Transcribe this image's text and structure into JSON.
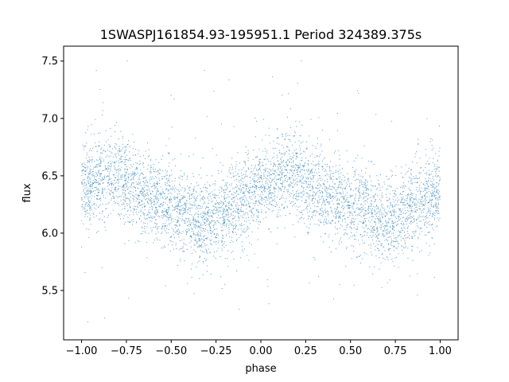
{
  "chart_data": {
    "type": "scatter",
    "title": "1SWASPJ161854.93-195951.1 Period 324389.375s",
    "xlabel": "phase",
    "ylabel": "flux",
    "xlim": [
      -1.1,
      1.1
    ],
    "ylim": [
      5.07,
      7.63
    ],
    "x_ticks": [
      -1.0,
      -0.75,
      -0.5,
      -0.25,
      0.0,
      0.25,
      0.5,
      0.75,
      1.0
    ],
    "x_tick_labels": [
      "−1.00",
      "−0.75",
      "−0.50",
      "−0.25",
      "0.00",
      "0.25",
      "0.50",
      "0.75",
      "1.00"
    ],
    "y_ticks": [
      5.5,
      6.0,
      6.5,
      7.0,
      7.5
    ],
    "y_tick_labels": [
      "5.5",
      "6.0",
      "6.5",
      "7.0",
      "7.5"
    ],
    "grid": false,
    "legend": "none",
    "point_color": "#1f77b4",
    "series": [
      {
        "x_range": [
          -1.0,
          1.0
        ],
        "folded_period": 1.0,
        "trend": {
          "phase": [
            0.0,
            0.1,
            0.15,
            0.2,
            0.3,
            0.4,
            0.5,
            0.6,
            0.68,
            0.75,
            0.85,
            0.95,
            1.0
          ],
          "flux": [
            6.38,
            6.48,
            6.52,
            6.5,
            6.38,
            6.3,
            6.22,
            6.18,
            6.08,
            6.12,
            6.25,
            6.33,
            6.38
          ]
        },
        "core_spread": 0.18,
        "outlier_flux_range": [
          5.2,
          7.55
        ]
      }
    ]
  }
}
